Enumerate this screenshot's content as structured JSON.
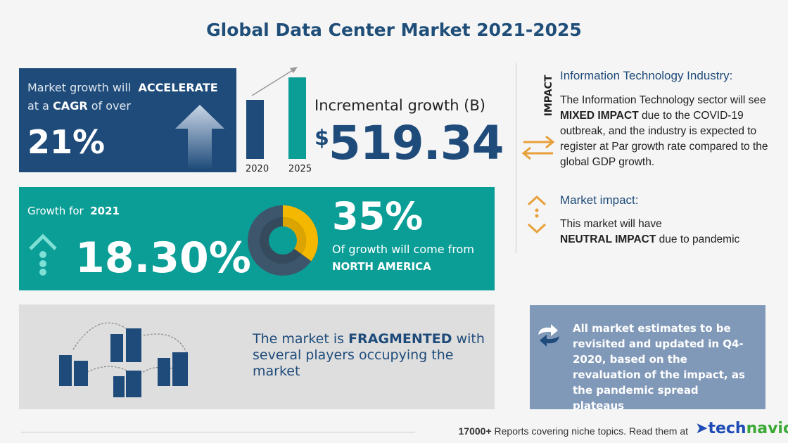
{
  "title": "Global Data Center Market 2021-2025",
  "cagr": {
    "line1_prefix": "Market growth will",
    "line1_bold": "ACCELERATE",
    "line2_prefix": "at a",
    "line2_bold": "CAGR",
    "line2_suffix": "of over",
    "value": "21%"
  },
  "incremental": {
    "years": [
      "2020",
      "2025"
    ],
    "label": "Incremental growth (B)",
    "currency": "$",
    "value": "519.34"
  },
  "growth": {
    "label": "Growth for",
    "year": "2021",
    "value": "18.30%",
    "share": "35%",
    "share_text": "Of growth will come from",
    "region": "NORTH AMERICA",
    "share_fraction": 0.35
  },
  "fragmented": {
    "prefix": "The market is",
    "bold": "FRAGMENTED",
    "suffix": "with several players occupying the market"
  },
  "impact": {
    "vertical_label": "IMPACT",
    "industry_heading": "Information Technology Industry:",
    "industry_text_1": "The Information Technology sector will see",
    "industry_bold": "MIXED IMPACT",
    "industry_text_2": "due to the COVID-19 outbreak, and the industry is expected to register at Par growth rate compared to the global GDP growth.",
    "market_heading": "Market impact:",
    "market_text_1": "This market will have",
    "market_bold": "NEUTRAL IMPACT",
    "market_text_2": "due to pandemic"
  },
  "note": "All market estimates to be revisited and updated in Q4-2020, based on the revaluation of the impact, as the pandemic spread plateaus",
  "footer": {
    "count": "17000+",
    "text": "Reports covering niche topics. Read them at",
    "logo_a": "tech",
    "logo_b": "navio"
  },
  "colors": {
    "navy": "#1e4b7a",
    "teal": "#0b9e96",
    "yellow": "#f5b800",
    "orange": "#e8a03a",
    "green": "#3aa935"
  }
}
